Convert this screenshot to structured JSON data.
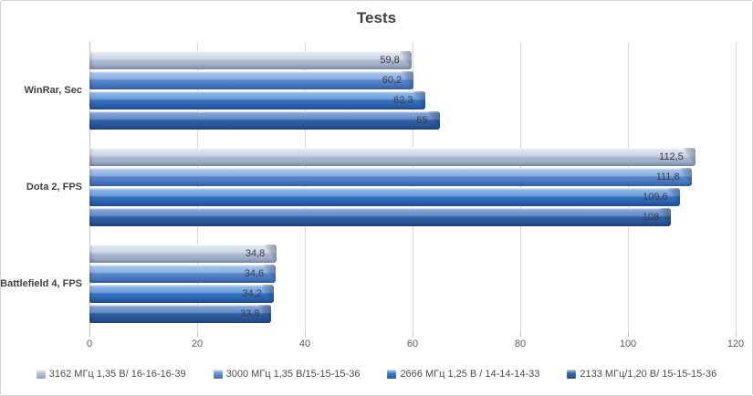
{
  "chart_data": {
    "type": "bar",
    "orientation": "horizontal",
    "title": "Tests",
    "xlabel": "",
    "ylabel": "",
    "xlim": [
      0,
      120
    ],
    "x_ticks": [
      "0",
      "20",
      "40",
      "60",
      "80",
      "100",
      "120"
    ],
    "grid": true,
    "legend_position": "bottom",
    "categories": [
      "WinRar, Sec",
      "Dota 2, FPS",
      "Battlefield 4, FPS"
    ],
    "series": [
      {
        "name": "3162 МГц 1,35 В/ 16-16-16-39",
        "values": [
          59.8,
          112.5,
          34.8
        ],
        "display": [
          "59,8",
          "112,5",
          "34,8"
        ],
        "colors": {
          "highlight": "#eff3f9",
          "light": "#d2dbea",
          "mid": "#bcc8dc",
          "mid2": "#aab8d0",
          "dark": "#93a2bd",
          "marker": "#b4c0d5"
        }
      },
      {
        "name": "3000 МГц 1,35 В/15-15-15-36",
        "values": [
          60.2,
          111.8,
          34.6
        ],
        "display": [
          "60,2",
          "111,8",
          "34,6"
        ],
        "colors": {
          "highlight": "#c5d9f3",
          "light": "#84abe0",
          "mid": "#6595d6",
          "mid2": "#5484c9",
          "dark": "#3e6cb2",
          "marker": "#6392d3"
        }
      },
      {
        "name": "2666 МГц 1,25 В / 14-14-14-33",
        "values": [
          62.3,
          109.6,
          34.2
        ],
        "display": [
          "62,3",
          "109,6",
          "34,2"
        ],
        "colors": {
          "highlight": "#aeccee",
          "light": "#5e97da",
          "mid": "#4080cc",
          "mid2": "#336fbc",
          "dark": "#2557a0",
          "marker": "#3b7bc8"
        }
      },
      {
        "name": "2133 МГц/1,20 В/ 15-15-15-36",
        "values": [
          65,
          108,
          33.8
        ],
        "display": [
          "65",
          "108",
          "33,8"
        ],
        "colors": {
          "highlight": "#9cb9de",
          "light": "#4a7cc2",
          "mid": "#3a6cb3",
          "mid2": "#2f5ea3",
          "dark": "#234c88",
          "marker": "#35649e"
        }
      }
    ]
  },
  "styles": {
    "gridline_color": "#d9d9d9",
    "axis_line_color": "#c3c3c3",
    "title_color": "#3f3f3f",
    "value_label_color": "#3d3d45",
    "category_label_color": "#404048",
    "tick_label_color": "#595959",
    "legend_text_color": "#4d4d4d"
  }
}
